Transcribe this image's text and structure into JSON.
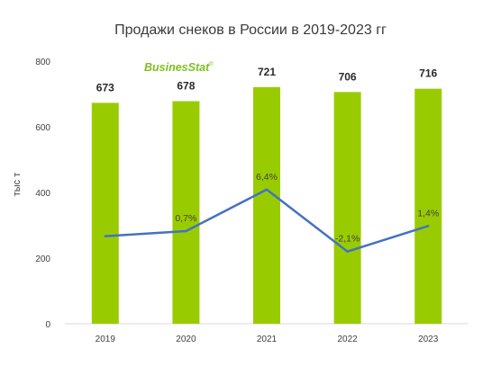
{
  "chart_data": {
    "type": "bar",
    "title": "Продажи снеков в России в 2019-2023 гг",
    "ylabel": "тыс т",
    "xlabel": "",
    "categories": [
      "2019",
      "2020",
      "2021",
      "2022",
      "2023"
    ],
    "ylim": [
      0,
      800
    ],
    "yticks": [
      0,
      200,
      400,
      600,
      800
    ],
    "grid": false,
    "series": [
      {
        "type": "bar",
        "values": [
          673,
          678,
          721,
          706,
          716
        ],
        "labels": [
          "673",
          "678",
          "721",
          "706",
          "716"
        ],
        "color": "#99cc00"
      },
      {
        "type": "line",
        "values": [
          null,
          0.7,
          6.4,
          -2.1,
          1.4
        ],
        "labels": [
          "",
          "0,7%",
          "6,4%",
          "-2,1%",
          "1,4%"
        ],
        "color": "#4472c4",
        "axis": "secondary"
      }
    ]
  },
  "brand": {
    "part1": "Busines",
    "part2": "Stat",
    "reg": "®"
  }
}
